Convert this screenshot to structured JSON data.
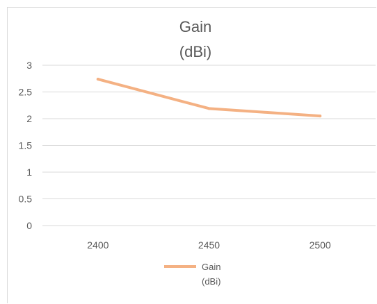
{
  "chart_data": {
    "type": "line",
    "title_lines": [
      "Gain",
      "(dBi)"
    ],
    "categories": [
      "2400",
      "2450",
      "2500"
    ],
    "series": [
      {
        "name_lines": [
          "Gain",
          "(dBi)"
        ],
        "values": [
          2.74,
          2.19,
          2.05
        ],
        "color": "#F4B183"
      }
    ],
    "ylim": [
      0,
      3
    ],
    "yticks": [
      "0",
      "0.5",
      "1",
      "1.5",
      "2",
      "2.5",
      "3"
    ],
    "grid": true,
    "legend_position": "bottom",
    "gridline_color": "#d9d9d9",
    "text_color": "#595959"
  }
}
